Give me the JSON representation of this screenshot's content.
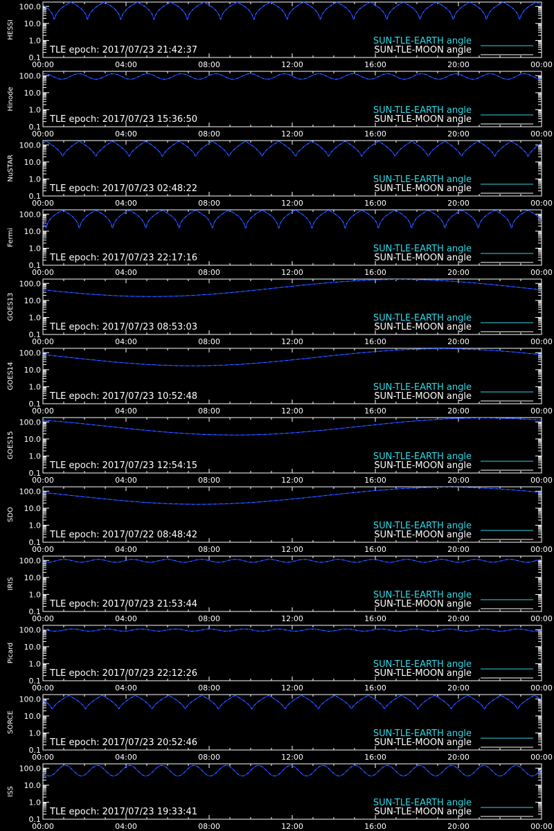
{
  "colors": {
    "background": "#000000",
    "axis": "#ffffff",
    "earth_angle": "#2fd8e8",
    "earth_angle_dim": "#1a30ff",
    "moon_angle": "#ffffff",
    "epoch_text": "#ffffff"
  },
  "chart_data": [
    {
      "type": "line",
      "satellite": "HESSI",
      "tle_epoch": "TLE epoch: 2017/07/23 21:42:37",
      "x_ticks": [
        "00:00",
        "04:00",
        "08:00",
        "12:00",
        "16:00",
        "20:00",
        "00:00"
      ],
      "y_ticks": [
        "0.1",
        "1.0",
        "10.0",
        "100.0"
      ],
      "y_scale": "log",
      "ylim": [
        0.1,
        180
      ],
      "xlim_hours": [
        0,
        24
      ],
      "legend": [
        "SUN-TLE-EARTH angle",
        "SUN-TLE-MOON angle"
      ],
      "legend_placement": "bottom-right",
      "earth_angle_series": {
        "pattern": "periodic",
        "period_hours": 1.6,
        "phase_hours": 0.55,
        "max": 175,
        "min": 8,
        "min_width_hours": 0.1
      }
    },
    {
      "type": "line",
      "satellite": "Hinode",
      "tle_epoch": "TLE epoch: 2017/07/23 15:36:50",
      "x_ticks": [
        "00:00",
        "04:00",
        "08:00",
        "12:00",
        "16:00",
        "20:00",
        "00:00"
      ],
      "y_ticks": [
        "0.1",
        "1.0",
        "10.0",
        "100.0"
      ],
      "y_scale": "log",
      "ylim": [
        0.1,
        180
      ],
      "xlim_hours": [
        0,
        24
      ],
      "legend": [
        "SUN-TLE-EARTH angle",
        "SUN-TLE-MOON angle"
      ],
      "legend_placement": "bottom-right",
      "earth_angle_series": {
        "pattern": "periodic",
        "period_hours": 1.65,
        "phase_hours": 0.9,
        "max": 130,
        "min": 62,
        "min_width_hours": 0.45
      }
    },
    {
      "type": "line",
      "satellite": "NuSTAR",
      "tle_epoch": "TLE epoch: 2017/07/23 02:48:22",
      "x_ticks": [
        "00:00",
        "04:00",
        "08:00",
        "12:00",
        "16:00",
        "20:00",
        "00:00"
      ],
      "y_ticks": [
        "0.1",
        "1.0",
        "10.0",
        "100.0"
      ],
      "y_scale": "log",
      "ylim": [
        0.1,
        180
      ],
      "xlim_hours": [
        0,
        24
      ],
      "legend": [
        "SUN-TLE-EARTH angle",
        "SUN-TLE-MOON angle"
      ],
      "legend_placement": "bottom-right",
      "earth_angle_series": {
        "pattern": "periodic",
        "period_hours": 1.6,
        "phase_hours": 0.95,
        "max": 165,
        "min": 18,
        "min_width_hours": 0.25
      }
    },
    {
      "type": "line",
      "satellite": "Fermi",
      "tle_epoch": "TLE epoch: 2017/07/23 22:17:16",
      "x_ticks": [
        "00:00",
        "04:00",
        "08:00",
        "12:00",
        "16:00",
        "20:00",
        "00:00"
      ],
      "y_ticks": [
        "0.1",
        "1.0",
        "10.0",
        "100.0"
      ],
      "y_scale": "log",
      "ylim": [
        0.1,
        180
      ],
      "xlim_hours": [
        0,
        24
      ],
      "legend": [
        "SUN-TLE-EARTH angle",
        "SUN-TLE-MOON angle"
      ],
      "legend_placement": "bottom-right",
      "earth_angle_series": {
        "pattern": "periodic",
        "period_hours": 1.6,
        "phase_hours": 0.15,
        "max": 170,
        "min": 7,
        "min_width_hours": 0.12
      }
    },
    {
      "type": "line",
      "satellite": "GOES13",
      "tle_epoch": "TLE epoch: 2017/07/23 08:53:03",
      "x_ticks": [
        "00:00",
        "04:00",
        "08:00",
        "12:00",
        "16:00",
        "20:00",
        "00:00"
      ],
      "y_ticks": [
        "0.1",
        "1.0",
        "10.0",
        "100.0"
      ],
      "y_scale": "log",
      "ylim": [
        0.1,
        180
      ],
      "xlim_hours": [
        0,
        24
      ],
      "legend": [
        "SUN-TLE-EARTH angle",
        "SUN-TLE-MOON angle"
      ],
      "legend_placement": "bottom-right",
      "earth_angle_series": {
        "pattern": "daily",
        "min_time_hours": 5.2,
        "max": 170,
        "min": 17
      }
    },
    {
      "type": "line",
      "satellite": "GOES14",
      "tle_epoch": "TLE epoch: 2017/07/23 10:52:48",
      "x_ticks": [
        "00:00",
        "04:00",
        "08:00",
        "12:00",
        "16:00",
        "20:00",
        "00:00"
      ],
      "y_ticks": [
        "0.1",
        "1.0",
        "10.0",
        "100.0"
      ],
      "y_scale": "log",
      "ylim": [
        0.1,
        180
      ],
      "xlim_hours": [
        0,
        24
      ],
      "legend": [
        "SUN-TLE-EARTH angle",
        "SUN-TLE-MOON angle"
      ],
      "legend_placement": "bottom-right",
      "earth_angle_series": {
        "pattern": "daily",
        "min_time_hours": 7.2,
        "max": 170,
        "min": 17
      }
    },
    {
      "type": "line",
      "satellite": "GOES15",
      "tle_epoch": "TLE epoch: 2017/07/23 12:54:15",
      "x_ticks": [
        "00:00",
        "04:00",
        "08:00",
        "12:00",
        "16:00",
        "20:00",
        "00:00"
      ],
      "y_ticks": [
        "0.1",
        "1.0",
        "10.0",
        "100.0"
      ],
      "y_scale": "log",
      "ylim": [
        0.1,
        180
      ],
      "xlim_hours": [
        0,
        24
      ],
      "legend": [
        "SUN-TLE-EARTH angle",
        "SUN-TLE-MOON angle"
      ],
      "legend_placement": "bottom-right",
      "earth_angle_series": {
        "pattern": "daily",
        "min_time_hours": 9.2,
        "max": 170,
        "min": 17
      }
    },
    {
      "type": "line",
      "satellite": "SDO",
      "tle_epoch": "TLE epoch: 2017/07/22 08:48:42",
      "x_ticks": [
        "00:00",
        "04:00",
        "08:00",
        "12:00",
        "16:00",
        "20:00",
        "00:00"
      ],
      "y_ticks": [
        "0.1",
        "1.0",
        "10.0",
        "100.0"
      ],
      "y_scale": "log",
      "ylim": [
        0.1,
        180
      ],
      "xlim_hours": [
        0,
        24
      ],
      "legend": [
        "SUN-TLE-EARTH angle",
        "SUN-TLE-MOON angle"
      ],
      "legend_placement": "bottom-right",
      "earth_angle_series": {
        "pattern": "daily",
        "min_time_hours": 7.5,
        "max": 170,
        "min": 17
      }
    },
    {
      "type": "line",
      "satellite": "IRIS",
      "tle_epoch": "TLE epoch: 2017/07/23 21:53:44",
      "x_ticks": [
        "00:00",
        "04:00",
        "08:00",
        "12:00",
        "16:00",
        "20:00",
        "00:00"
      ],
      "y_ticks": [
        "0.1",
        "1.0",
        "10.0",
        "100.0"
      ],
      "y_scale": "log",
      "ylim": [
        0.1,
        180
      ],
      "xlim_hours": [
        0,
        24
      ],
      "legend": [
        "SUN-TLE-EARTH angle",
        "SUN-TLE-MOON angle"
      ],
      "legend_placement": "bottom-right",
      "earth_angle_series": {
        "pattern": "periodic",
        "period_hours": 1.65,
        "phase_hours": 0.2,
        "max": 115,
        "min": 78,
        "min_width_hours": 0.5
      }
    },
    {
      "type": "line",
      "satellite": "Picard",
      "tle_epoch": "TLE epoch: 2017/07/23 22:12:26",
      "x_ticks": [
        "00:00",
        "04:00",
        "08:00",
        "12:00",
        "16:00",
        "20:00",
        "00:00"
      ],
      "y_ticks": [
        "0.1",
        "1.0",
        "10.0",
        "100.0"
      ],
      "y_scale": "log",
      "ylim": [
        0.1,
        180
      ],
      "xlim_hours": [
        0,
        24
      ],
      "legend": [
        "SUN-TLE-EARTH angle",
        "SUN-TLE-MOON angle"
      ],
      "legend_placement": "bottom-right",
      "earth_angle_series": {
        "pattern": "periodic",
        "period_hours": 1.65,
        "phase_hours": 0.6,
        "max": 110,
        "min": 82,
        "min_width_hours": 0.5
      }
    },
    {
      "type": "line",
      "satellite": "SORCE",
      "tle_epoch": "TLE epoch: 2017/07/23 20:52:46",
      "x_ticks": [
        "00:00",
        "04:00",
        "08:00",
        "12:00",
        "16:00",
        "20:00",
        "00:00"
      ],
      "y_ticks": [
        "0.1",
        "1.0",
        "10.0",
        "100.0"
      ],
      "y_scale": "log",
      "ylim": [
        0.1,
        180
      ],
      "xlim_hours": [
        0,
        24
      ],
      "legend": [
        "SUN-TLE-EARTH angle",
        "SUN-TLE-MOON angle"
      ],
      "legend_placement": "bottom-right",
      "earth_angle_series": {
        "pattern": "periodic",
        "period_hours": 1.6,
        "phase_hours": 0.45,
        "max": 160,
        "min": 22,
        "min_width_hours": 0.3
      }
    },
    {
      "type": "line",
      "satellite": "ISS",
      "tle_epoch": "TLE epoch: 2017/07/23 19:33:41",
      "x_ticks": [
        "00:00",
        "04:00",
        "08:00",
        "12:00",
        "16:00",
        "20:00",
        "00:00"
      ],
      "y_ticks": [
        "0.1",
        "1.0",
        "10.0",
        "100.0"
      ],
      "y_scale": "log",
      "ylim": [
        0.1,
        180
      ],
      "xlim_hours": [
        0,
        24
      ],
      "legend": [
        "SUN-TLE-EARTH angle",
        "SUN-TLE-MOON angle"
      ],
      "legend_placement": "bottom-right",
      "earth_angle_series": {
        "pattern": "periodic",
        "period_hours": 1.55,
        "phase_hours": 0.3,
        "max": 145,
        "min": 35,
        "min_width_hours": 0.4
      }
    }
  ]
}
